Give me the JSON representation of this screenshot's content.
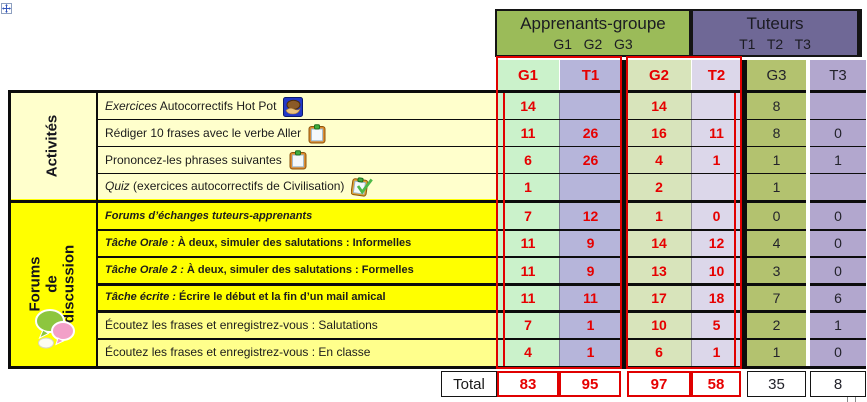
{
  "header": {
    "groups": [
      {
        "title": "Apprenants-groupe",
        "sub": "G1   G2   G3",
        "color": "#9bbb59"
      },
      {
        "title": "Tuteurs",
        "sub": "T1   T2   T3",
        "color": "#6f6896"
      }
    ],
    "columns": [
      {
        "id": "G1",
        "label": "G1",
        "style": "red",
        "bg": "#cbf2cb"
      },
      {
        "id": "T1",
        "label": "T1",
        "style": "red",
        "bg": "#b6b5da"
      },
      {
        "id": "G2",
        "label": "G2",
        "style": "red",
        "bg": "#d8e4bb"
      },
      {
        "id": "T2",
        "label": "T2",
        "style": "red",
        "bg": "#dcd7ea"
      },
      {
        "id": "G3",
        "label": "G3",
        "style": "black",
        "bg": "#b3c26f"
      },
      {
        "id": "T3",
        "label": "T3",
        "style": "black",
        "bg": "#b2a7ce"
      }
    ]
  },
  "sections": [
    {
      "label": "Activités",
      "bg": "#ffffcc",
      "rows": [
        {
          "label_parts": [
            {
              "t": "Exercices",
              "style": "i"
            },
            {
              "t": " Autocorrectifs Hot Pot",
              "style": "r"
            }
          ],
          "icon": "hotpotatoes-icon",
          "values": [
            "14",
            "/",
            "14",
            "/",
            "8",
            "/"
          ]
        },
        {
          "label_parts": [
            {
              "t": "Rédiger 10 frases avec le  verbe  Aller",
              "style": "r"
            }
          ],
          "icon": "clipboard-icon",
          "values": [
            "11",
            "26",
            "16",
            "11",
            "8",
            "0"
          ]
        },
        {
          "label_parts": [
            {
              "t": "Prononcez-les phrases  suivantes",
              "style": "r"
            }
          ],
          "icon": "clipboard-icon",
          "values": [
            "6",
            "26",
            "4",
            "1",
            "1",
            "1"
          ]
        },
        {
          "label_parts": [
            {
              "t": "Quiz",
              "style": "i"
            },
            {
              "t": " (exercices autocorrectifs de Civilisation)",
              "style": "r"
            }
          ],
          "icon": "quiz-check-icon",
          "values": [
            "1",
            "/",
            "2",
            "/",
            "1",
            "/"
          ]
        }
      ]
    },
    {
      "label": "Forums\nde\ndiscussion",
      "bg": "#ffff00",
      "icon": "chat-bubbles-icon",
      "rows": [
        {
          "label_parts": [
            {
              "t": "Forums d’échanges tuteurs-apprenants",
              "style": "bi"
            }
          ],
          "values": [
            "7",
            "12",
            "1",
            "0",
            "0",
            "0"
          ]
        },
        {
          "label_parts": [
            {
              "t": "Tâche Orale :",
              "style": "bi"
            },
            {
              "t": " À deux, simuler des salutations : Informelles",
              "style": "b"
            }
          ],
          "values": [
            "11",
            "9",
            "14",
            "12",
            "4",
            "0"
          ]
        },
        {
          "label_parts": [
            {
              "t": "Tâche Orale 2 :",
              "style": "bi"
            },
            {
              "t": " À deux, simuler des salutations : Formelles",
              "style": "b"
            }
          ],
          "values": [
            "11",
            "9",
            "13",
            "10",
            "3",
            "0"
          ]
        },
        {
          "label_parts": [
            {
              "t": "Tâche écrite :",
              "style": "bi"
            },
            {
              "t": " Écrire le début et la fin d’un mail amical",
              "style": "b"
            }
          ],
          "values": [
            "11",
            "11",
            "17",
            "18",
            "7",
            "6"
          ]
        },
        {
          "label_parts": [
            {
              "t": "Écoutez les frases et enregistrez-vous : Salutations",
              "style": "r"
            }
          ],
          "bg": "#ffff8c",
          "values": [
            "7",
            "1",
            "10",
            "5",
            "2",
            "1"
          ]
        },
        {
          "label_parts": [
            {
              "t": "Écoutez les frases et enregistrez-vous : En classe",
              "style": "r"
            }
          ],
          "bg": "#ffff8c",
          "values": [
            "4",
            "1",
            "6",
            "1",
            "1",
            "0"
          ]
        }
      ]
    }
  ],
  "total": {
    "label": "Total",
    "values": [
      "83",
      "95",
      "97",
      "58",
      "35",
      "8"
    ]
  },
  "colors": {
    "pair_outline": "#e00000",
    "value_red": "#e60000",
    "grid_black": "#0c0c0c"
  }
}
